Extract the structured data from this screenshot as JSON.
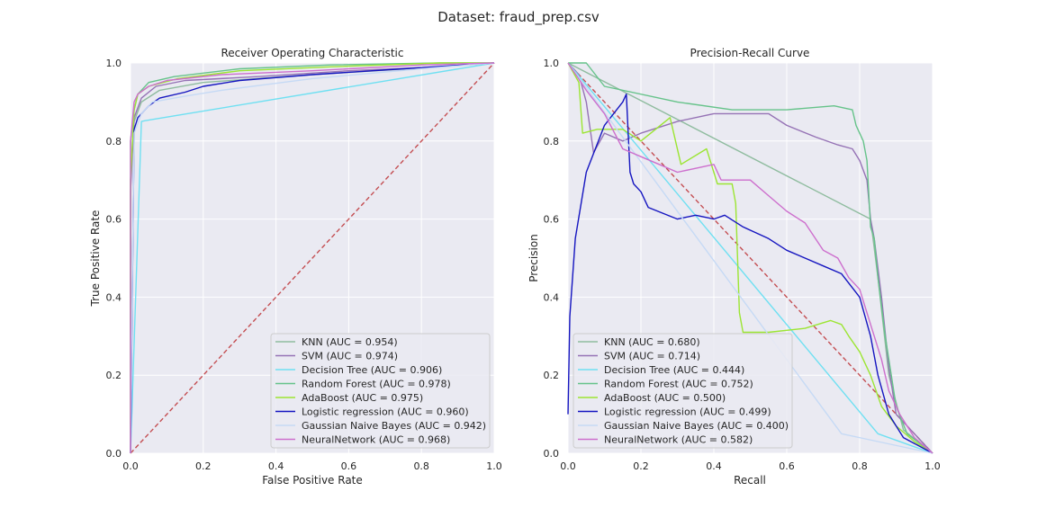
{
  "figure": {
    "suptitle": "Dataset: fraud_prep.csv"
  },
  "chart_data": [
    {
      "type": "line",
      "title": "Receiver Operating Characteristic",
      "xlabel": "False Positive Rate",
      "ylabel": "True Positive Rate",
      "xlim": [
        0,
        1
      ],
      "ylim": [
        0,
        1
      ],
      "xticks": [
        "0.0",
        "0.2",
        "0.4",
        "0.6",
        "0.8",
        "1.0"
      ],
      "yticks": [
        "0.0",
        "0.2",
        "0.4",
        "0.6",
        "0.8",
        "1.0"
      ],
      "grid": true,
      "legend_position": "lower-right",
      "reference_line": {
        "points": [
          [
            0,
            0
          ],
          [
            1,
            1
          ]
        ],
        "color": "#c44e52",
        "style": "dashed"
      },
      "series": [
        {
          "name": "KNN (AUC = 0.954)",
          "color": "#8fbc9f",
          "points": [
            [
              0,
              0
            ],
            [
              0,
              0.7
            ],
            [
              0.01,
              0.85
            ],
            [
              0.03,
              0.9
            ],
            [
              0.08,
              0.93
            ],
            [
              0.2,
              0.95
            ],
            [
              0.5,
              0.97
            ],
            [
              0.85,
              0.99
            ],
            [
              1,
              1
            ]
          ]
        },
        {
          "name": "SVM (AUC = 0.974)",
          "color": "#9572b5",
          "points": [
            [
              0,
              0
            ],
            [
              0,
              0.67
            ],
            [
              0.01,
              0.86
            ],
            [
              0.03,
              0.91
            ],
            [
              0.07,
              0.94
            ],
            [
              0.15,
              0.955
            ],
            [
              0.35,
              0.965
            ],
            [
              0.6,
              0.98
            ],
            [
              0.85,
              0.99
            ],
            [
              1,
              1
            ]
          ]
        },
        {
          "name": "Decision Tree (AUC = 0.906)",
          "color": "#6fe0f2",
          "points": [
            [
              0,
              0
            ],
            [
              0.03,
              0.85
            ],
            [
              0.04,
              0.852
            ],
            [
              1,
              1
            ]
          ]
        },
        {
          "name": "Random Forest (AUC = 0.978)",
          "color": "#66c38a",
          "points": [
            [
              0,
              0
            ],
            [
              0,
              0.8
            ],
            [
              0.01,
              0.88
            ],
            [
              0.02,
              0.92
            ],
            [
              0.05,
              0.95
            ],
            [
              0.12,
              0.965
            ],
            [
              0.3,
              0.985
            ],
            [
              0.55,
              0.995
            ],
            [
              0.85,
              1
            ],
            [
              1,
              1
            ]
          ]
        },
        {
          "name": "AdaBoost (AUC = 0.975)",
          "color": "#9ce533",
          "points": [
            [
              0,
              0
            ],
            [
              0,
              0.47
            ],
            [
              0,
              0.7
            ],
            [
              0.01,
              0.88
            ],
            [
              0.02,
              0.92
            ],
            [
              0.05,
              0.94
            ],
            [
              0.13,
              0.96
            ],
            [
              0.3,
              0.98
            ],
            [
              0.55,
              0.99
            ],
            [
              0.85,
              1
            ],
            [
              1,
              1
            ]
          ]
        },
        {
          "name": "Logistic regression (AUC = 0.960)",
          "color": "#1515c0",
          "points": [
            [
              0,
              0
            ],
            [
              0.01,
              0.83
            ],
            [
              0.02,
              0.86
            ],
            [
              0.05,
              0.89
            ],
            [
              0.08,
              0.91
            ],
            [
              0.15,
              0.925
            ],
            [
              0.2,
              0.94
            ],
            [
              0.3,
              0.955
            ],
            [
              0.5,
              0.97
            ],
            [
              0.75,
              0.985
            ],
            [
              1,
              1
            ]
          ]
        },
        {
          "name": "Gaussian Naive Bayes (AUC = 0.942)",
          "color": "#c6daf5",
          "points": [
            [
              0,
              0
            ],
            [
              0,
              0.05
            ],
            [
              0.01,
              0.82
            ],
            [
              0.03,
              0.87
            ],
            [
              0.06,
              0.9
            ],
            [
              0.15,
              0.915
            ],
            [
              0.25,
              0.93
            ],
            [
              0.5,
              0.96
            ],
            [
              0.8,
              0.985
            ],
            [
              1,
              1
            ]
          ]
        },
        {
          "name": "NeuralNetwork (AUC = 0.968)",
          "color": "#cd6fcd",
          "points": [
            [
              0,
              0
            ],
            [
              0,
              0.8
            ],
            [
              0.01,
              0.9
            ],
            [
              0.02,
              0.92
            ],
            [
              0.05,
              0.94
            ],
            [
              0.1,
              0.955
            ],
            [
              0.25,
              0.97
            ],
            [
              0.5,
              0.98
            ],
            [
              0.8,
              0.995
            ],
            [
              1,
              1
            ]
          ]
        }
      ]
    },
    {
      "type": "line",
      "title": "Precision-Recall Curve",
      "xlabel": "Recall",
      "ylabel": "Precision",
      "xlim": [
        0,
        1
      ],
      "ylim": [
        0,
        1
      ],
      "xticks": [
        "0.0",
        "0.2",
        "0.4",
        "0.6",
        "0.8",
        "1.0"
      ],
      "yticks": [
        "0.0",
        "0.2",
        "0.4",
        "0.6",
        "0.8",
        "1.0"
      ],
      "grid": true,
      "legend_position": "lower-left",
      "reference_line": {
        "points": [
          [
            0,
            1
          ],
          [
            1,
            0
          ]
        ],
        "color": "#c44e52",
        "style": "dashed"
      },
      "series": [
        {
          "name": "KNN (AUC = 0.680)",
          "color": "#8fbc9f",
          "points": [
            [
              0,
              1
            ],
            [
              0.83,
              0.6
            ],
            [
              0.85,
              0.45
            ],
            [
              0.88,
              0.2
            ],
            [
              0.92,
              0.06
            ],
            [
              1,
              0
            ]
          ]
        },
        {
          "name": "SVM (AUC = 0.714)",
          "color": "#9572b5",
          "points": [
            [
              0,
              1
            ],
            [
              0.03,
              0.97
            ],
            [
              0.05,
              0.9
            ],
            [
              0.07,
              0.77
            ],
            [
              0.1,
              0.82
            ],
            [
              0.15,
              0.8
            ],
            [
              0.2,
              0.82
            ],
            [
              0.3,
              0.85
            ],
            [
              0.4,
              0.87
            ],
            [
              0.55,
              0.87
            ],
            [
              0.6,
              0.84
            ],
            [
              0.68,
              0.81
            ],
            [
              0.74,
              0.79
            ],
            [
              0.78,
              0.78
            ],
            [
              0.8,
              0.75
            ],
            [
              0.82,
              0.7
            ],
            [
              0.83,
              0.6
            ],
            [
              0.84,
              0.55
            ],
            [
              0.86,
              0.4
            ],
            [
              0.88,
              0.22
            ],
            [
              0.9,
              0.1
            ],
            [
              1,
              0
            ]
          ]
        },
        {
          "name": "Decision Tree (AUC = 0.444)",
          "color": "#6fe0f2",
          "points": [
            [
              0,
              1
            ],
            [
              0.85,
              0.05
            ],
            [
              1,
              0
            ]
          ]
        },
        {
          "name": "Random Forest (AUC = 0.752)",
          "color": "#66c38a",
          "points": [
            [
              0,
              1
            ],
            [
              0.05,
              1
            ],
            [
              0.1,
              0.94
            ],
            [
              0.3,
              0.9
            ],
            [
              0.45,
              0.88
            ],
            [
              0.6,
              0.88
            ],
            [
              0.73,
              0.89
            ],
            [
              0.78,
              0.88
            ],
            [
              0.79,
              0.84
            ],
            [
              0.81,
              0.8
            ],
            [
              0.82,
              0.75
            ],
            [
              0.83,
              0.58
            ],
            [
              0.84,
              0.55
            ],
            [
              0.85,
              0.45
            ],
            [
              0.87,
              0.3
            ],
            [
              0.9,
              0.12
            ],
            [
              0.93,
              0.05
            ],
            [
              1,
              0
            ]
          ]
        },
        {
          "name": "AdaBoost (AUC = 0.500)",
          "color": "#9ce533",
          "points": [
            [
              0,
              1
            ],
            [
              0.03,
              0.95
            ],
            [
              0.04,
              0.82
            ],
            [
              0.08,
              0.83
            ],
            [
              0.15,
              0.83
            ],
            [
              0.2,
              0.8
            ],
            [
              0.28,
              0.86
            ],
            [
              0.31,
              0.74
            ],
            [
              0.38,
              0.78
            ],
            [
              0.41,
              0.69
            ],
            [
              0.45,
              0.69
            ],
            [
              0.46,
              0.64
            ],
            [
              0.47,
              0.36
            ],
            [
              0.48,
              0.31
            ],
            [
              0.55,
              0.31
            ],
            [
              0.65,
              0.32
            ],
            [
              0.72,
              0.34
            ],
            [
              0.75,
              0.33
            ],
            [
              0.77,
              0.3
            ],
            [
              0.8,
              0.26
            ],
            [
              0.83,
              0.2
            ],
            [
              0.86,
              0.12
            ],
            [
              0.9,
              0.07
            ],
            [
              0.95,
              0.03
            ],
            [
              1,
              0
            ]
          ]
        },
        {
          "name": "Logistic regression (AUC = 0.499)",
          "color": "#1515c0",
          "points": [
            [
              0,
              0.1
            ],
            [
              0.005,
              0.35
            ],
            [
              0.02,
              0.55
            ],
            [
              0.05,
              0.72
            ],
            [
              0.1,
              0.84
            ],
            [
              0.15,
              0.9
            ],
            [
              0.16,
              0.92
            ],
            [
              0.17,
              0.72
            ],
            [
              0.18,
              0.69
            ],
            [
              0.2,
              0.67
            ],
            [
              0.22,
              0.63
            ],
            [
              0.3,
              0.6
            ],
            [
              0.35,
              0.61
            ],
            [
              0.4,
              0.6
            ],
            [
              0.43,
              0.61
            ],
            [
              0.48,
              0.58
            ],
            [
              0.55,
              0.55
            ],
            [
              0.6,
              0.52
            ],
            [
              0.65,
              0.5
            ],
            [
              0.7,
              0.48
            ],
            [
              0.75,
              0.46
            ],
            [
              0.8,
              0.4
            ],
            [
              0.83,
              0.3
            ],
            [
              0.85,
              0.2
            ],
            [
              0.88,
              0.1
            ],
            [
              0.92,
              0.04
            ],
            [
              1,
              0
            ]
          ]
        },
        {
          "name": "Gaussian Naive Bayes (AUC = 0.400)",
          "color": "#c6daf5",
          "points": [
            [
              0,
              1
            ],
            [
              0.75,
              0.05
            ],
            [
              0.85,
              0.03
            ],
            [
              1,
              0
            ]
          ]
        },
        {
          "name": "NeuralNetwork (AUC = 0.582)",
          "color": "#cd6fcd",
          "points": [
            [
              0,
              1
            ],
            [
              0.05,
              0.93
            ],
            [
              0.1,
              0.87
            ],
            [
              0.15,
              0.78
            ],
            [
              0.2,
              0.76
            ],
            [
              0.25,
              0.74
            ],
            [
              0.3,
              0.72
            ],
            [
              0.35,
              0.73
            ],
            [
              0.4,
              0.74
            ],
            [
              0.42,
              0.7
            ],
            [
              0.5,
              0.7
            ],
            [
              0.55,
              0.66
            ],
            [
              0.6,
              0.62
            ],
            [
              0.65,
              0.59
            ],
            [
              0.7,
              0.52
            ],
            [
              0.74,
              0.5
            ],
            [
              0.77,
              0.45
            ],
            [
              0.8,
              0.42
            ],
            [
              0.82,
              0.36
            ],
            [
              0.84,
              0.3
            ],
            [
              0.86,
              0.24
            ],
            [
              0.88,
              0.16
            ],
            [
              0.91,
              0.1
            ],
            [
              0.95,
              0.04
            ],
            [
              1,
              0
            ]
          ]
        }
      ]
    }
  ]
}
